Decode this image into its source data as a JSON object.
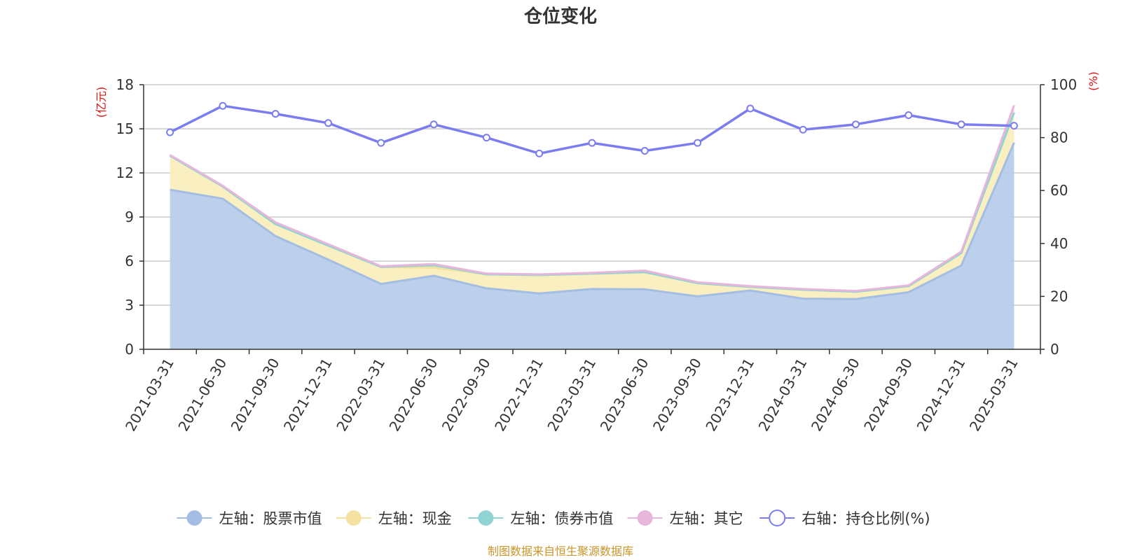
{
  "page_title": "仓位变化",
  "source_note": "制图数据来自恒生聚源数据库",
  "left_axis_unit": "(亿元)",
  "right_axis_unit": "(%)",
  "chart_data": {
    "type": "area",
    "title": "仓位变化",
    "categories": [
      "2021-03-31",
      "2021-06-30",
      "2021-09-30",
      "2021-12-31",
      "2022-03-31",
      "2022-06-30",
      "2022-09-30",
      "2022-12-31",
      "2023-03-31",
      "2023-06-30",
      "2023-09-30",
      "2023-12-31",
      "2024-03-31",
      "2024-06-30",
      "2024-09-30",
      "2024-12-31",
      "2025-03-31"
    ],
    "left_axis": {
      "unit": "(亿元)",
      "ylim": [
        0,
        18
      ],
      "ticks": [
        0,
        3,
        6,
        9,
        12,
        15,
        18
      ]
    },
    "right_axis": {
      "unit": "(%)",
      "ylim": [
        0,
        100
      ],
      "ticks": [
        0,
        20,
        40,
        60,
        80,
        100
      ]
    },
    "series": [
      {
        "name": "左轴：股票市值",
        "axis": "left",
        "kind": "area",
        "color": "#a3bde3",
        "fill": "#b8cdeb",
        "values": [
          10.85,
          10.25,
          7.7,
          6.1,
          4.45,
          5.0,
          4.15,
          3.8,
          4.1,
          4.08,
          3.6,
          4.0,
          3.45,
          3.42,
          3.88,
          5.7,
          14.05
        ]
      },
      {
        "name": "左轴：现金",
        "axis": "left",
        "kind": "area",
        "color": "#f5e2a0",
        "fill": "#faeebd",
        "values": [
          2.32,
          0.82,
          0.82,
          0.95,
          1.15,
          0.55,
          0.95,
          1.25,
          1.05,
          1.17,
          0.9,
          0.25,
          0.6,
          0.5,
          0.42,
          0.85,
          2.05
        ]
      },
      {
        "name": "左轴：债券市值",
        "axis": "left",
        "kind": "area",
        "color": "#8fd3d3",
        "fill": "#9fdada",
        "values": [
          0,
          0,
          0,
          0,
          0,
          0.18,
          0,
          0,
          0,
          0,
          0,
          0,
          0,
          0,
          0,
          0,
          0
        ]
      },
      {
        "name": "左轴：其它",
        "axis": "left",
        "kind": "area",
        "color": "#e8b6da",
        "fill": "#f0cce6",
        "values": [
          0.05,
          0.06,
          0.12,
          0.1,
          0.05,
          0.07,
          0.05,
          0.05,
          0.05,
          0.1,
          0.06,
          0.05,
          0.05,
          0.05,
          0.05,
          0.1,
          0.5
        ]
      },
      {
        "name": "右轴：持仓比例(%)",
        "axis": "right",
        "kind": "line",
        "color": "#7a7cf0",
        "values": [
          82.0,
          92.0,
          89.0,
          85.5,
          78.0,
          85.0,
          80.0,
          74.0,
          78.0,
          75.0,
          78.0,
          91.0,
          83.0,
          85.0,
          88.5,
          85.0,
          84.5
        ]
      }
    ],
    "grid": true,
    "legend_position": "bottom"
  }
}
